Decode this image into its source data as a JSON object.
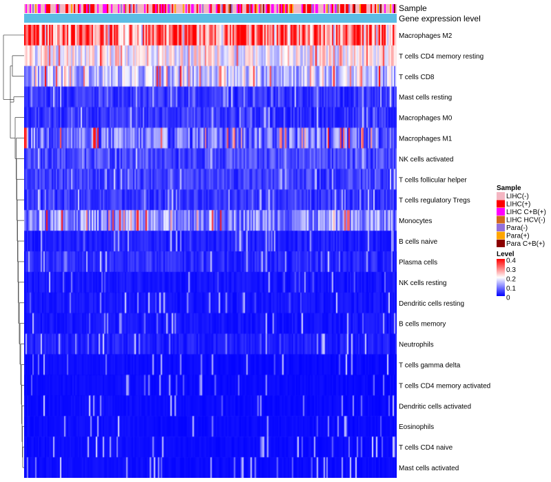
{
  "chart_data": {
    "type": "heatmap",
    "title": "",
    "annotation_tracks": [
      "Sample",
      "Gene expression level"
    ],
    "rows": [
      {
        "name": "Macrophages M2",
        "mean": 0.33
      },
      {
        "name": "T cells CD4 memory resting",
        "mean": 0.2
      },
      {
        "name": "T cells CD8",
        "mean": 0.15
      },
      {
        "name": "Mast cells resting",
        "mean": 0.05
      },
      {
        "name": "Macrophages M0",
        "mean": 0.05
      },
      {
        "name": "Macrophages M1",
        "mean": 0.09
      },
      {
        "name": "NK cells activated",
        "mean": 0.07
      },
      {
        "name": "T cells follicular helper",
        "mean": 0.06
      },
      {
        "name": "T cells regulatory  Tregs",
        "mean": 0.05
      },
      {
        "name": "Monocytes",
        "mean": 0.11
      },
      {
        "name": "B cells naive",
        "mean": 0.03
      },
      {
        "name": "Plasma cells",
        "mean": 0.04
      },
      {
        "name": "NK cells resting",
        "mean": 0.02
      },
      {
        "name": "Dendritic cells resting",
        "mean": 0.02
      },
      {
        "name": "B cells memory",
        "mean": 0.02
      },
      {
        "name": "Neutrophils",
        "mean": 0.03
      },
      {
        "name": "T cells gamma delta",
        "mean": 0.01
      },
      {
        "name": "T cells CD4 memory activated",
        "mean": 0.01
      },
      {
        "name": "Dendritic cells activated",
        "mean": 0.01
      },
      {
        "name": "Eosinophils",
        "mean": 0.01
      },
      {
        "name": "T cells CD4 naive",
        "mean": 0.01
      },
      {
        "name": "Mast cells activated",
        "mean": 0.01
      }
    ],
    "n_samples": 270,
    "legend": {
      "sample_title": "Sample",
      "sample_groups": [
        {
          "label": "LIHC(-)",
          "color": "#f4b6c2"
        },
        {
          "label": "LIHC(+)",
          "color": "#ff0000"
        },
        {
          "label": "LIHC C+B(+)",
          "color": "#ff00ff"
        },
        {
          "label": "LIHC HCV(-)",
          "color": "#d2691e"
        },
        {
          "label": "Para(-)",
          "color": "#9370db"
        },
        {
          "label": "Para(+)",
          "color": "#ffa500"
        },
        {
          "label": "Para C+B(+)",
          "color": "#8b0000"
        }
      ],
      "level_title": "Level",
      "level_ticks": [
        "0.4",
        "0.3",
        "0.2",
        "0.1",
        "0"
      ],
      "level_range": [
        0,
        0.4
      ],
      "level_colors": [
        "#0000ff",
        "#ffffff",
        "#ff0000"
      ]
    },
    "expression_track_color": "#5bbce4"
  }
}
